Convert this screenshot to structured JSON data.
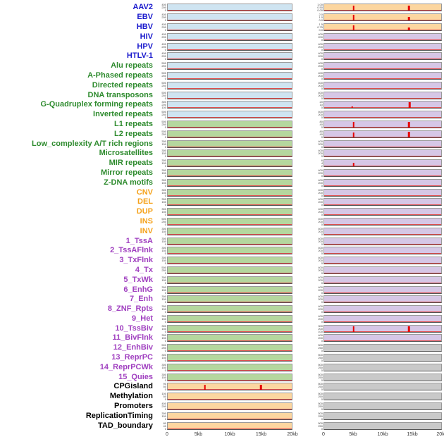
{
  "colors": {
    "label_virus": "#1a1acd",
    "label_repeat": "#2e8b2e",
    "label_sv": "#f5a21b",
    "label_chromstate": "#a040c0",
    "label_other": "#000000",
    "plot_blue": "#cfe4f1",
    "plot_green": "#b5d79e",
    "plot_orange": "#fcd6a0",
    "plot_purple": "#d6c7e6",
    "plot_gray": "#c9c9c9",
    "spike": "#e60000",
    "baseline": "#e05050"
  },
  "chart_data": {
    "type": "line",
    "title": "",
    "xlabel": "",
    "ylabel": "",
    "columns": 2,
    "x_ticks": [
      "0",
      "5kb",
      "10kb",
      "15kb",
      "20kb"
    ],
    "x_range_kb": [
      0,
      20
    ],
    "rows": [
      {
        "label": "AAV2",
        "group": "virus",
        "left": {
          "bg": "blue",
          "yticks": [
            "400",
            "200",
            "0"
          ],
          "spikes": []
        },
        "right": {
          "bg": "orange",
          "yticks": [
            "1.00",
            "0.50",
            "0.00"
          ],
          "spikes": [
            [
              5,
              0.85
            ],
            [
              14.5,
              0.8
            ]
          ]
        }
      },
      {
        "label": "EBV",
        "group": "virus",
        "left": {
          "bg": "blue",
          "yticks": [
            "400",
            "200",
            "0"
          ],
          "spikes": []
        },
        "right": {
          "bg": "orange",
          "yticks": [
            "2.0",
            "1.0",
            "0.0"
          ],
          "spikes": [
            [
              5,
              0.95
            ],
            [
              14.5,
              0.6
            ]
          ]
        }
      },
      {
        "label": "HBV",
        "group": "virus",
        "left": {
          "bg": "blue",
          "yticks": [
            "400",
            "200",
            "0"
          ],
          "spikes": []
        },
        "right": {
          "bg": "orange",
          "yticks": [
            "1.5",
            "0.75",
            "0.0"
          ],
          "spikes": [
            [
              5,
              0.8
            ],
            [
              14.5,
              0.45
            ]
          ]
        }
      },
      {
        "label": "HIV",
        "group": "virus",
        "left": {
          "bg": "blue",
          "yticks": [
            "400",
            "200",
            "0"
          ],
          "spikes": []
        },
        "right": {
          "bg": "purple",
          "yticks": [
            "400",
            "200",
            "0"
          ],
          "spikes": []
        }
      },
      {
        "label": "HPV",
        "group": "virus",
        "left": {
          "bg": "blue",
          "yticks": [
            "400",
            "200",
            "0"
          ],
          "spikes": []
        },
        "right": {
          "bg": "purple",
          "yticks": [
            "400",
            "200",
            "0"
          ],
          "spikes": []
        }
      },
      {
        "label": "HTLV-1",
        "group": "virus",
        "left": {
          "bg": "blue",
          "yticks": [
            "400",
            "200",
            "0"
          ],
          "spikes": []
        },
        "right": {
          "bg": "purple",
          "yticks": [
            "400",
            "200",
            "0"
          ],
          "spikes": []
        }
      },
      {
        "label": "Alu repeats",
        "group": "repeat",
        "left": {
          "bg": "blue",
          "yticks": [
            "500",
            "250",
            "0"
          ],
          "spikes": []
        },
        "right": {
          "bg": "purple",
          "yticks": [
            "400",
            "200",
            "0"
          ],
          "spikes": []
        }
      },
      {
        "label": "A-Phased repeats",
        "group": "repeat",
        "left": {
          "bg": "blue",
          "yticks": [
            "500",
            "250",
            "0"
          ],
          "spikes": []
        },
        "right": {
          "bg": "purple",
          "yticks": [
            "400",
            "200",
            "0"
          ],
          "spikes": []
        }
      },
      {
        "label": "Directed repeats",
        "group": "repeat",
        "left": {
          "bg": "blue",
          "yticks": [
            "500",
            "250",
            "0"
          ],
          "spikes": []
        },
        "right": {
          "bg": "purple",
          "yticks": [
            "400",
            "200",
            "0"
          ],
          "spikes": []
        }
      },
      {
        "label": "DNA transposons",
        "group": "repeat",
        "left": {
          "bg": "blue",
          "yticks": [
            "500",
            "250",
            "0"
          ],
          "spikes": []
        },
        "right": {
          "bg": "purple",
          "yticks": [
            "400",
            "200",
            "0"
          ],
          "spikes": []
        }
      },
      {
        "label": "G-Quadruplex forming repeats",
        "group": "repeat",
        "left": {
          "bg": "blue",
          "yticks": [
            "300",
            "200",
            "100",
            "0"
          ],
          "spikes": []
        },
        "right": {
          "bg": "purple",
          "yticks": [
            "20",
            "10",
            "0"
          ],
          "spikes": [
            [
              4.8,
              0.25
            ],
            [
              14.6,
              0.9
            ]
          ]
        }
      },
      {
        "label": "Inverted repeats",
        "group": "repeat",
        "left": {
          "bg": "blue",
          "yticks": [
            "500",
            "250",
            "0"
          ],
          "spikes": []
        },
        "right": {
          "bg": "purple",
          "yticks": [
            "400",
            "200",
            "0"
          ],
          "spikes": []
        }
      },
      {
        "label": "L1 repeats",
        "group": "repeat",
        "left": {
          "bg": "green",
          "yticks": [
            "500",
            "250",
            "0"
          ],
          "spikes": []
        },
        "right": {
          "bg": "purple",
          "yticks": [
            "80",
            "40",
            "0"
          ],
          "spikes": [
            [
              5,
              0.9
            ],
            [
              14.5,
              0.85
            ]
          ]
        }
      },
      {
        "label": "L2 repeats",
        "group": "repeat",
        "left": {
          "bg": "green",
          "yticks": [
            "500",
            "250",
            "0"
          ],
          "spikes": []
        },
        "right": {
          "bg": "purple",
          "yticks": [
            "80",
            "40",
            "0"
          ],
          "spikes": [
            [
              5,
              0.8
            ],
            [
              14.5,
              0.9
            ]
          ]
        }
      },
      {
        "label": "Low_complexity A/T rich regions",
        "group": "repeat",
        "left": {
          "bg": "green",
          "yticks": [
            "300",
            "150",
            "0"
          ],
          "spikes": []
        },
        "right": {
          "bg": "purple",
          "yticks": [
            "400",
            "200",
            "0"
          ],
          "spikes": []
        }
      },
      {
        "label": "Microsatellites",
        "group": "repeat",
        "left": {
          "bg": "green",
          "yticks": [
            "300",
            "150",
            "0"
          ],
          "spikes": []
        },
        "right": {
          "bg": "purple",
          "yticks": [
            "400",
            "200",
            "0"
          ],
          "spikes": []
        }
      },
      {
        "label": "MIR repeats",
        "group": "repeat",
        "left": {
          "bg": "green",
          "yticks": [
            "300",
            "150",
            "0"
          ],
          "spikes": []
        },
        "right": {
          "bg": "purple",
          "yticks": [
            "6",
            "4",
            "2"
          ],
          "spikes": [
            [
              5,
              0.55
            ]
          ]
        }
      },
      {
        "label": "Mirror repeats",
        "group": "repeat",
        "left": {
          "bg": "green",
          "yticks": [
            "300",
            "150",
            "0"
          ],
          "spikes": []
        },
        "right": {
          "bg": "purple",
          "yticks": [
            "400",
            "200",
            "0"
          ],
          "spikes": []
        }
      },
      {
        "label": "Z-DNA motifs",
        "group": "repeat",
        "left": {
          "bg": "green",
          "yticks": [
            "300",
            "150",
            "0"
          ],
          "spikes": []
        },
        "right": {
          "bg": "purple",
          "yticks": [
            "400",
            "200",
            "0"
          ],
          "spikes": []
        }
      },
      {
        "label": "CNV",
        "group": "sv",
        "left": {
          "bg": "green",
          "yticks": [
            "300",
            "150",
            "0"
          ],
          "spikes": []
        },
        "right": {
          "bg": "purple",
          "yticks": [
            "400",
            "200",
            "0"
          ],
          "spikes": []
        }
      },
      {
        "label": "DEL",
        "group": "sv",
        "left": {
          "bg": "green",
          "yticks": [
            "300",
            "150",
            "0"
          ],
          "spikes": []
        },
        "right": {
          "bg": "purple",
          "yticks": [
            "400",
            "200",
            "0"
          ],
          "spikes": []
        }
      },
      {
        "label": "DUP",
        "group": "sv",
        "left": {
          "bg": "green",
          "yticks": [
            "300",
            "150",
            "0"
          ],
          "spikes": []
        },
        "right": {
          "bg": "purple",
          "yticks": [
            "400",
            "200",
            "0"
          ],
          "spikes": []
        }
      },
      {
        "label": "INS",
        "group": "sv",
        "left": {
          "bg": "green",
          "yticks": [
            "500",
            "250",
            "0"
          ],
          "spikes": []
        },
        "right": {
          "bg": "purple",
          "yticks": [
            "400",
            "200",
            "0"
          ],
          "spikes": []
        }
      },
      {
        "label": "INV",
        "group": "sv",
        "left": {
          "bg": "green",
          "yticks": [
            "300",
            "150",
            "0"
          ],
          "spikes": []
        },
        "right": {
          "bg": "purple",
          "yticks": [
            "400",
            "200",
            "0"
          ],
          "spikes": []
        }
      },
      {
        "label": "1_TssA",
        "group": "chromstate",
        "left": {
          "bg": "green",
          "yticks": [
            "300",
            "150",
            "0"
          ],
          "spikes": []
        },
        "right": {
          "bg": "purple",
          "yticks": [
            "400",
            "200",
            "0"
          ],
          "spikes": []
        }
      },
      {
        "label": "2_TssAFlnk",
        "group": "chromstate",
        "left": {
          "bg": "green",
          "yticks": [
            "300",
            "150",
            "0"
          ],
          "spikes": []
        },
        "right": {
          "bg": "purple",
          "yticks": [
            "400",
            "200",
            "0"
          ],
          "spikes": []
        }
      },
      {
        "label": "3_TxFlnk",
        "group": "chromstate",
        "left": {
          "bg": "green",
          "yticks": [
            "300",
            "150",
            "0"
          ],
          "spikes": []
        },
        "right": {
          "bg": "purple",
          "yticks": [
            "400",
            "200",
            "0"
          ],
          "spikes": []
        }
      },
      {
        "label": "4_Tx",
        "group": "chromstate",
        "left": {
          "bg": "green",
          "yticks": [
            "500",
            "250",
            "0"
          ],
          "spikes": []
        },
        "right": {
          "bg": "purple",
          "yticks": [
            "400",
            "200",
            "0"
          ],
          "spikes": []
        }
      },
      {
        "label": "5_TxWk",
        "group": "chromstate",
        "left": {
          "bg": "green",
          "yticks": [
            "300",
            "150",
            "0"
          ],
          "spikes": []
        },
        "right": {
          "bg": "purple",
          "yticks": [
            "400",
            "200",
            "0"
          ],
          "spikes": []
        }
      },
      {
        "label": "6_EnhG",
        "group": "chromstate",
        "left": {
          "bg": "green",
          "yticks": [
            "300",
            "150",
            "0"
          ],
          "spikes": []
        },
        "right": {
          "bg": "purple",
          "yticks": [
            "400",
            "200",
            "0"
          ],
          "spikes": []
        }
      },
      {
        "label": "7_Enh",
        "group": "chromstate",
        "left": {
          "bg": "green",
          "yticks": [
            "300",
            "150",
            "0"
          ],
          "spikes": []
        },
        "right": {
          "bg": "purple",
          "yticks": [
            "400",
            "200",
            "0"
          ],
          "spikes": []
        }
      },
      {
        "label": "8_ZNF_Rpts",
        "group": "chromstate",
        "left": {
          "bg": "green",
          "yticks": [
            "300",
            "150",
            "0"
          ],
          "spikes": []
        },
        "right": {
          "bg": "purple",
          "yticks": [
            "400",
            "200",
            "0"
          ],
          "spikes": []
        }
      },
      {
        "label": "9_Het",
        "group": "chromstate",
        "left": {
          "bg": "green",
          "yticks": [
            "300",
            "150",
            "0"
          ],
          "spikes": []
        },
        "right": {
          "bg": "purple",
          "yticks": [
            "400",
            "200",
            "0"
          ],
          "spikes": []
        }
      },
      {
        "label": "10_TssBiv",
        "group": "chromstate",
        "left": {
          "bg": "green",
          "yticks": [
            "300",
            "150",
            "0"
          ],
          "spikes": []
        },
        "right": {
          "bg": "purple",
          "yticks": [
            "300",
            "200",
            "100"
          ],
          "spikes": [
            [
              5,
              0.85
            ],
            [
              14.5,
              0.85
            ]
          ]
        }
      },
      {
        "label": "11_BivFlnk",
        "group": "chromstate",
        "left": {
          "bg": "green",
          "yticks": [
            "300",
            "150",
            "0"
          ],
          "spikes": []
        },
        "right": {
          "bg": "purple",
          "yticks": [
            "400",
            "200",
            "0"
          ],
          "spikes": []
        }
      },
      {
        "label": "12_EnhBiv",
        "group": "chromstate",
        "left": {
          "bg": "green",
          "yticks": [
            "500",
            "250",
            "0"
          ],
          "spikes": []
        },
        "right": {
          "bg": "gray",
          "yticks": [
            "500",
            "250",
            "0"
          ],
          "spikes": []
        }
      },
      {
        "label": "13_ReprPC",
        "group": "chromstate",
        "left": {
          "bg": "green",
          "yticks": [
            "300",
            "150",
            "0"
          ],
          "spikes": []
        },
        "right": {
          "bg": "gray",
          "yticks": [
            "500",
            "250",
            "0"
          ],
          "spikes": []
        }
      },
      {
        "label": "14_ReprPCWk",
        "group": "chromstate",
        "left": {
          "bg": "green",
          "yticks": [
            "300",
            "150",
            "0"
          ],
          "spikes": []
        },
        "right": {
          "bg": "gray",
          "yticks": [
            "500",
            "250",
            "0"
          ],
          "spikes": []
        }
      },
      {
        "label": "15_Quies",
        "group": "chromstate",
        "left": {
          "bg": "green",
          "yticks": [
            "300",
            "150",
            "0"
          ],
          "spikes": []
        },
        "right": {
          "bg": "gray",
          "yticks": [
            "500",
            "250",
            "0"
          ],
          "spikes": []
        }
      },
      {
        "label": "CPGisland",
        "group": "other",
        "left": {
          "bg": "orange",
          "yticks": [
            "90",
            "50",
            "0"
          ],
          "spikes": [
            [
              6,
              0.8
            ],
            [
              15,
              0.8
            ]
          ]
        },
        "right": {
          "bg": "gray",
          "yticks": [
            "500",
            "250",
            "0"
          ],
          "spikes": []
        }
      },
      {
        "label": "Methylation",
        "group": "other",
        "left": {
          "bg": "orange",
          "yticks": [
            "100",
            "50",
            "0"
          ],
          "spikes": []
        },
        "right": {
          "bg": "gray",
          "yticks": [
            "500",
            "250",
            "0"
          ],
          "spikes": []
        }
      },
      {
        "label": "Promoters",
        "group": "other",
        "left": {
          "bg": "orange",
          "yticks": [
            "400",
            "200",
            "0"
          ],
          "spikes": []
        },
        "right": {
          "bg": "gray",
          "yticks": [
            "500",
            "250",
            "0"
          ],
          "spikes": []
        }
      },
      {
        "label": "ReplicationTiming",
        "group": "other",
        "left": {
          "bg": "orange",
          "yticks": [
            "300",
            "150",
            "0"
          ],
          "spikes": []
        },
        "right": {
          "bg": "gray",
          "yticks": [
            "500",
            "250",
            "0"
          ],
          "spikes": []
        }
      },
      {
        "label": "TAD_boundary",
        "group": "other",
        "left": {
          "bg": "orange",
          "yticks": [
            "80",
            "40",
            "0"
          ],
          "spikes": []
        },
        "right": {
          "bg": "gray",
          "yticks": [
            "500",
            "250",
            "0"
          ],
          "spikes": []
        }
      }
    ]
  }
}
